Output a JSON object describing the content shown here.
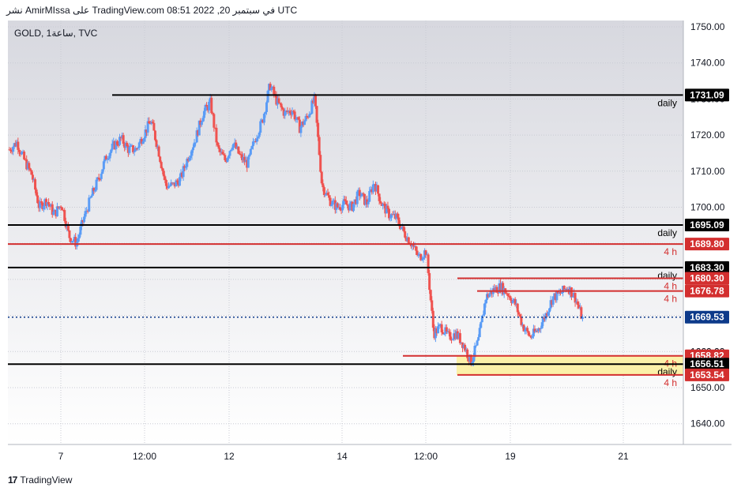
{
  "header": {
    "attribution": "نشر AmirMIssa على TradingView.com 08:51 2022 ,20 في سبتمبر UTC",
    "symbol_label": "GOLD, 1ساعة, TVC"
  },
  "footer": {
    "logo_glyph": "17",
    "brand": "TradingView"
  },
  "colors": {
    "up": "#5b9cf6",
    "down": "#ef5350",
    "support_black": "#000000",
    "level_red": "#d32f2f",
    "current_price": "#0d3a8a",
    "zone_fill": "#fbf1a9"
  },
  "chart_data": {
    "type": "candlestick",
    "symbol": "GOLD",
    "timeframe": "1h",
    "exchange": "TVC",
    "ylim": [
      1630.5,
      1756
    ],
    "price_axis": [
      "1750.00",
      "1740.00",
      "1730.00",
      "1720.00",
      "1710.00",
      "1700.00",
      "1690.00",
      "1680.00",
      "1670.00",
      "1660.00",
      "1650.00",
      "1640.00"
    ],
    "x_labels": [
      "7",
      "12:00",
      "12",
      "14",
      "12:00",
      "19",
      "21"
    ],
    "current_price": "1669.53",
    "close_path": [
      1716,
      1718,
      1713,
      1709,
      1700,
      1702,
      1698,
      1701,
      1692,
      1690,
      1697,
      1703,
      1708,
      1714,
      1717,
      1719,
      1716,
      1716,
      1720,
      1724,
      1716,
      1706,
      1706,
      1708,
      1714,
      1719,
      1726,
      1729,
      1716,
      1713,
      1718,
      1714,
      1712,
      1719,
      1724,
      1734,
      1729,
      1726,
      1727,
      1722,
      1725,
      1730,
      1706,
      1702,
      1700,
      1701,
      1700,
      1704,
      1701,
      1707,
      1701,
      1698,
      1697,
      1693,
      1690,
      1686,
      1688,
      1665,
      1667,
      1664,
      1665,
      1662,
      1657,
      1663,
      1675,
      1677,
      1678,
      1676,
      1673,
      1667,
      1664,
      1666,
      1670,
      1675,
      1676,
      1678,
      1675,
      1669
    ],
    "levels": [
      {
        "price": "1731.09",
        "label": "daily",
        "color": "#000000"
      },
      {
        "price": "1695.09",
        "label": "daily",
        "color": "#000000"
      },
      {
        "price": "1689.80",
        "label": "4 h",
        "color": "#d32f2f"
      },
      {
        "price": "1683.30",
        "label": "daily",
        "color": "#000000"
      },
      {
        "price": "1680.30",
        "label": "4 h",
        "color": "#d32f2f"
      },
      {
        "price": "1676.78",
        "label": "4 h",
        "color": "#d32f2f"
      },
      {
        "price": "1658.82",
        "label": "4 h",
        "color": "#d32f2f"
      },
      {
        "price": "1656.51",
        "label": "daily",
        "color": "#000000"
      },
      {
        "price": "1653.54",
        "label": "4 h",
        "color": "#d32f2f"
      }
    ],
    "zone": {
      "from": "1653.54",
      "to": "1658.82"
    },
    "hidden_axis_value": "1660.00",
    "grid": true
  }
}
